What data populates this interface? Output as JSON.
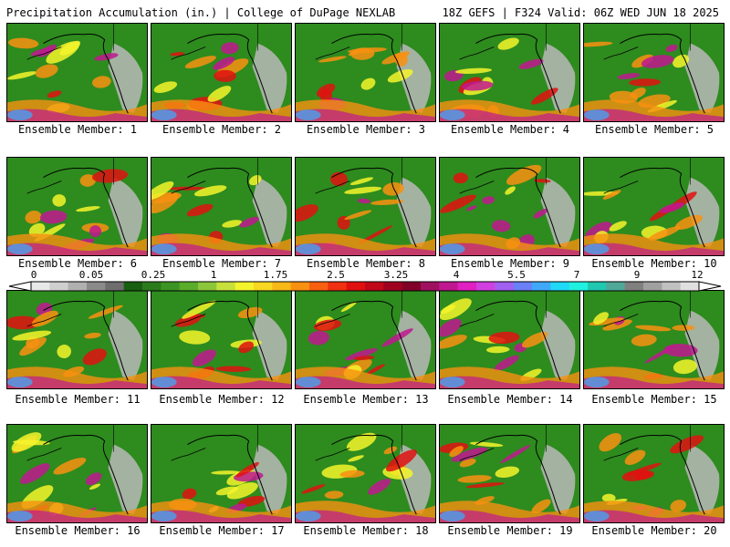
{
  "header": {
    "title": "Precipitation Accumulation (in.) | College of DuPage NEXLAB",
    "run_info": "18Z GEFS | F324 Valid: 06Z WED JUN 18 2025"
  },
  "members": [
    {
      "label": "Ensemble Member: 1"
    },
    {
      "label": "Ensemble Member: 2"
    },
    {
      "label": "Ensemble Member: 3"
    },
    {
      "label": "Ensemble Member: 4"
    },
    {
      "label": "Ensemble Member: 5"
    },
    {
      "label": "Ensemble Member: 6"
    },
    {
      "label": "Ensemble Member: 7"
    },
    {
      "label": "Ensemble Member: 8"
    },
    {
      "label": "Ensemble Member: 9"
    },
    {
      "label": "Ensemble Member: 10"
    },
    {
      "label": "Ensemble Member: 11"
    },
    {
      "label": "Ensemble Member: 12"
    },
    {
      "label": "Ensemble Member: 13"
    },
    {
      "label": "Ensemble Member: 14"
    },
    {
      "label": "Ensemble Member: 15"
    },
    {
      "label": "Ensemble Member: 16"
    },
    {
      "label": "Ensemble Member: 17"
    },
    {
      "label": "Ensemble Member: 18"
    },
    {
      "label": "Ensemble Member: 19"
    },
    {
      "label": "Ensemble Member: 20"
    }
  ],
  "colorbar": {
    "tick_labels": [
      "0",
      "0.05",
      "0.25",
      "1",
      "1.75",
      "2.5",
      "3.25",
      "4",
      "5.5",
      "7",
      "9",
      "12"
    ],
    "colors": [
      "#e8e8e8",
      "#cfcfcf",
      "#b0b0b0",
      "#8a8a8a",
      "#6e6e6e",
      "#1a5e12",
      "#2b7a1b",
      "#3c9424",
      "#5aac2a",
      "#8cc63a",
      "#c8e03c",
      "#f4f42c",
      "#f8d820",
      "#f8b818",
      "#f89010",
      "#f86010",
      "#f03010",
      "#e01010",
      "#c00818",
      "#a00020",
      "#800028",
      "#a01060",
      "#c01890",
      "#e020c0",
      "#d040e0",
      "#a060f0",
      "#6a80f8",
      "#40a8f8",
      "#20d8f8",
      "#20f0e0",
      "#20c8b0",
      "#50a898",
      "#808080",
      "#a0a0a0",
      "#c0c0c0",
      "#e0e0e0"
    ]
  },
  "palette": {
    "ocean_green": "#2e8b1e",
    "dry_gray": "#b8b8b8",
    "rain_yellow": "#f4f42c",
    "rain_orange": "#f89010",
    "rain_red": "#e01010",
    "rain_magenta": "#c01890",
    "rain_cyan": "#40a8f8",
    "coastline": "#000000"
  }
}
